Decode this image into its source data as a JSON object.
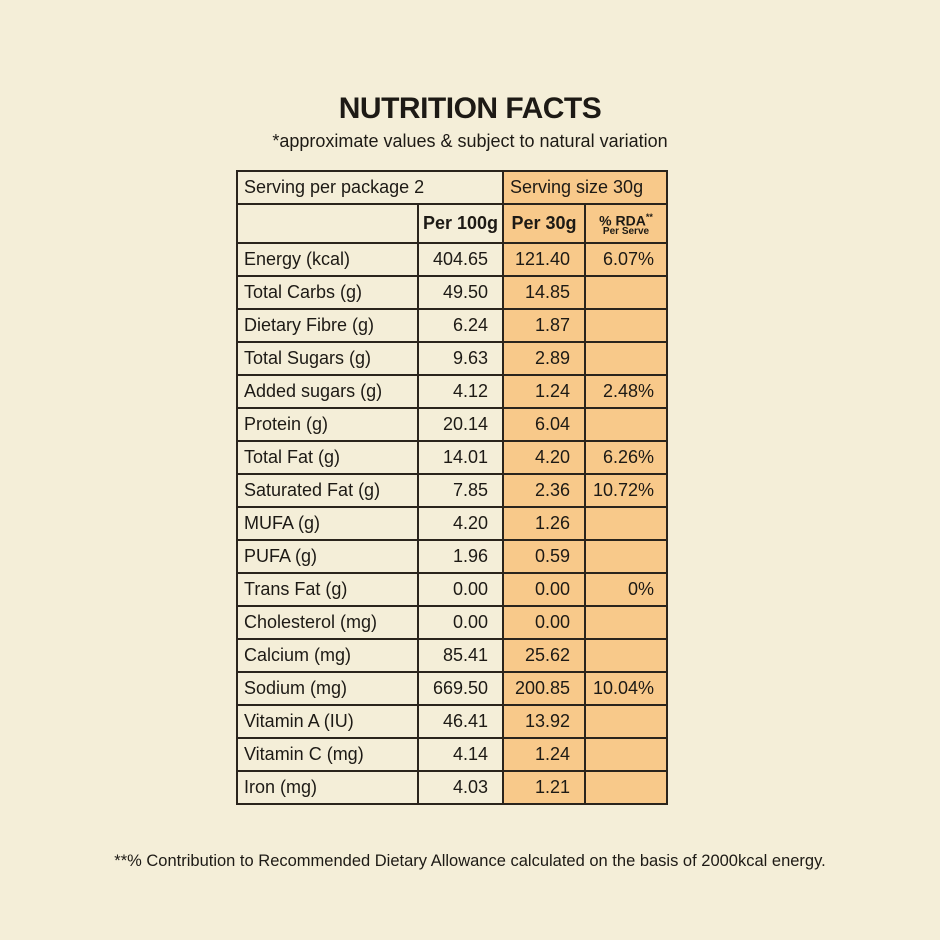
{
  "header": {
    "title": "NUTRITION FACTS",
    "subtitle": "*approximate values & subject to natural variation"
  },
  "table": {
    "serving_per_package": "Serving per package 2",
    "serving_size": "Serving size 30g",
    "columns": {
      "per_100g": "Per 100g",
      "per_30g": "Per 30g",
      "rda": "% RDA",
      "rda_mark": "**",
      "rda_sub": "Per Serve"
    },
    "rows": [
      [
        "Energy (kcal)",
        "404.65",
        "121.40",
        "6.07%"
      ],
      [
        "Total Carbs (g)",
        "49.50",
        "14.85",
        null
      ],
      [
        "Dietary Fibre (g)",
        "6.24",
        "1.87",
        null
      ],
      [
        "Total Sugars (g)",
        "9.63",
        "2.89",
        null
      ],
      [
        "Added sugars (g)",
        "4.12",
        "1.24",
        "2.48%"
      ],
      [
        "Protein (g)",
        "20.14",
        "6.04",
        null
      ],
      [
        "Total Fat (g)",
        "14.01",
        "4.20",
        "6.26%"
      ],
      [
        "Saturated Fat (g)",
        "7.85",
        "2.36",
        "10.72%"
      ],
      [
        "MUFA (g)",
        "4.20",
        "1.26",
        null
      ],
      [
        "PUFA (g)",
        "1.96",
        "0.59",
        null
      ],
      [
        "Trans Fat (g)",
        "0.00",
        "0.00",
        "0%"
      ],
      [
        "Cholesterol (mg)",
        "0.00",
        "0.00",
        null
      ],
      [
        "Calcium (mg)",
        "85.41",
        "25.62",
        null
      ],
      [
        "Sodium (mg)",
        "669.50",
        "200.85",
        "10.04%"
      ],
      [
        "Vitamin A (IU)",
        "46.41",
        "13.92",
        null
      ],
      [
        "Vitamin C (mg)",
        "4.14",
        "1.24",
        null
      ],
      [
        "Iron (mg)",
        "4.03",
        "1.21",
        null
      ]
    ]
  },
  "footnote": "**% Contribution to Recommended Dietary Allowance calculated on the basis of 2000kcal energy."
}
